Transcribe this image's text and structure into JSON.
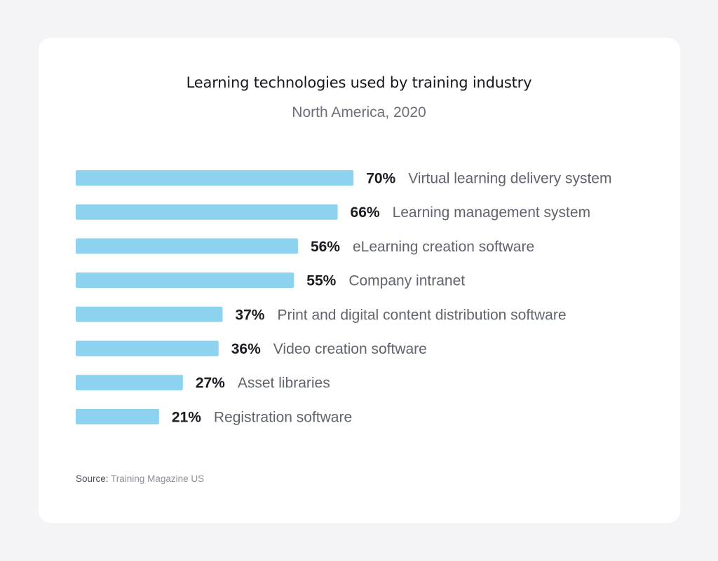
{
  "chart_data": {
    "type": "bar",
    "orientation": "horizontal",
    "title": "Learning technologies used by training industry",
    "subtitle": "North America, 2020",
    "categories": [
      "Virtual learning delivery system",
      "Learning management system",
      "eLearning creation software",
      "Company intranet",
      "Print and digital content distribution software",
      "Video creation software",
      "Asset libraries",
      "Registration software"
    ],
    "values": [
      70,
      66,
      56,
      55,
      37,
      36,
      27,
      21
    ],
    "value_labels": [
      "70%",
      "66%",
      "56%",
      "55%",
      "37%",
      "36%",
      "27%",
      "21%"
    ],
    "unit": "%",
    "xlim": [
      0,
      100
    ],
    "grid": false,
    "bar_color": "#8dd3f0"
  },
  "source": {
    "label": "Source:",
    "text": "Training Magazine US"
  },
  "colors": {
    "background": "#f4f4f6",
    "card": "#ffffff",
    "title": "#14161c",
    "value_text": "#1a1c22",
    "category_text": "#5f646d"
  }
}
